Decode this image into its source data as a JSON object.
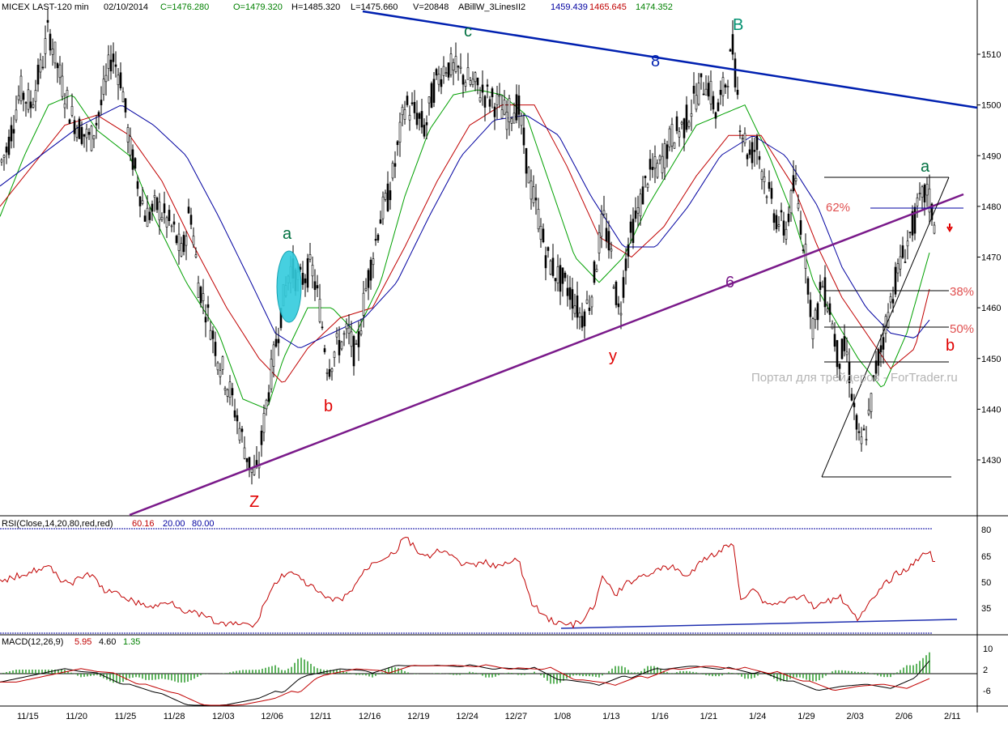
{
  "header": {
    "symbol": "MICEX LAST-120 min",
    "date": "02/10/2014",
    "close": "C=1476.280",
    "open": "O=1479.320",
    "high": "H=1485.320",
    "low": "L=1475.660",
    "volume": "V=20848",
    "indicator_name": "ABillW_3LinesII2",
    "ind_blue": "1459.439",
    "ind_red": "1465.645",
    "ind_green": "1474.352"
  },
  "rsi": {
    "label": "RSI(Close,14,20,80,red,red)",
    "value": "60.16",
    "low": "20.00",
    "high": "80.00",
    "ticks": [
      "80",
      "65",
      "50",
      "35"
    ]
  },
  "macd": {
    "label": "MACD(12,26,9)",
    "macd": "5.95",
    "signal": "4.60",
    "hist": "1.35",
    "ticks": [
      "10",
      "2",
      "-6"
    ]
  },
  "watermark": "Портал для трейдеров - ForTrader.ru",
  "colors": {
    "blue": "#0000a0",
    "red": "#c00000",
    "green": "#00a000",
    "purple": "#7a1a8a",
    "wave_red": "#e00000",
    "wave_green": "#007040",
    "wave_teal": "#009070",
    "cyan": "#33ccdd"
  },
  "chart_data": {
    "type": "candlestick",
    "ylim": [
      1420,
      1518
    ],
    "yticks": [
      1430,
      1440,
      1450,
      1460,
      1470,
      1480,
      1490,
      1500,
      1510
    ],
    "xticks": [
      "11/15",
      "11/20",
      "11/25",
      "11/28",
      "12/03",
      "12/06",
      "12/11",
      "12/16",
      "12/19",
      "12/24",
      "12/27",
      "1/08",
      "1/13",
      "1/16",
      "1/21",
      "1/24",
      "1/29",
      "2/03",
      "2/06",
      "2/11"
    ],
    "price_path": [
      [
        0,
        1488
      ],
      [
        10,
        1492
      ],
      [
        25,
        1503
      ],
      [
        38,
        1500
      ],
      [
        52,
        1508
      ],
      [
        60,
        1515
      ],
      [
        75,
        1505
      ],
      [
        88,
        1498
      ],
      [
        100,
        1495
      ],
      [
        112,
        1493
      ],
      [
        125,
        1500
      ],
      [
        138,
        1510
      ],
      [
        150,
        1505
      ],
      [
        160,
        1492
      ],
      [
        170,
        1485
      ],
      [
        180,
        1478
      ],
      [
        195,
        1480
      ],
      [
        215,
        1475
      ],
      [
        225,
        1470
      ],
      [
        235,
        1480
      ],
      [
        245,
        1465
      ],
      [
        258,
        1458
      ],
      [
        270,
        1450
      ],
      [
        285,
        1443
      ],
      [
        298,
        1435
      ],
      [
        310,
        1428
      ],
      [
        318,
        1427
      ],
      [
        328,
        1440
      ],
      [
        338,
        1450
      ],
      [
        348,
        1460
      ],
      [
        358,
        1468
      ],
      [
        370,
        1465
      ],
      [
        385,
        1468
      ],
      [
        395,
        1460
      ],
      [
        405,
        1448
      ],
      [
        415,
        1452
      ],
      [
        430,
        1455
      ],
      [
        440,
        1450
      ],
      [
        450,
        1462
      ],
      [
        460,
        1470
      ],
      [
        470,
        1478
      ],
      [
        480,
        1482
      ],
      [
        490,
        1490
      ],
      [
        500,
        1500
      ],
      [
        515,
        1498
      ],
      [
        525,
        1495
      ],
      [
        535,
        1503
      ],
      [
        550,
        1508
      ],
      [
        570,
        1506
      ],
      [
        585,
        1504
      ],
      [
        600,
        1502
      ],
      [
        615,
        1500
      ],
      [
        625,
        1498
      ],
      [
        640,
        1500
      ],
      [
        655,
        1484
      ],
      [
        665,
        1478
      ],
      [
        675,
        1470
      ],
      [
        690,
        1466
      ],
      [
        705,
        1463
      ],
      [
        718,
        1458
      ],
      [
        730,
        1462
      ],
      [
        745,
        1478
      ],
      [
        755,
        1470
      ],
      [
        765,
        1458
      ],
      [
        775,
        1472
      ],
      [
        790,
        1480
      ],
      [
        800,
        1486
      ],
      [
        815,
        1488
      ],
      [
        830,
        1494
      ],
      [
        845,
        1496
      ],
      [
        860,
        1502
      ],
      [
        873,
        1505
      ],
      [
        885,
        1498
      ],
      [
        897,
        1505
      ],
      [
        905,
        1511
      ],
      [
        915,
        1496
      ],
      [
        925,
        1490
      ],
      [
        935,
        1492
      ],
      [
        945,
        1485
      ],
      [
        958,
        1478
      ],
      [
        970,
        1475
      ],
      [
        982,
        1485
      ],
      [
        995,
        1470
      ],
      [
        1005,
        1455
      ],
      [
        1015,
        1465
      ],
      [
        1025,
        1460
      ],
      [
        1035,
        1450
      ],
      [
        1045,
        1452
      ],
      [
        1055,
        1440
      ],
      [
        1062,
        1432
      ],
      [
        1072,
        1437
      ],
      [
        1082,
        1448
      ],
      [
        1092,
        1455
      ],
      [
        1105,
        1465
      ],
      [
        1115,
        1470
      ],
      [
        1125,
        1475
      ],
      [
        1135,
        1480
      ],
      [
        1145,
        1483
      ],
      [
        1155,
        1476
      ]
    ],
    "indicator_lines": [
      {
        "name": "green",
        "values": [
          [
            0,
            1478
          ],
          [
            30,
            1490
          ],
          [
            60,
            1500
          ],
          [
            90,
            1502
          ],
          [
            120,
            1495
          ],
          [
            160,
            1490
          ],
          [
            190,
            1478
          ],
          [
            230,
            1465
          ],
          [
            270,
            1455
          ],
          [
            300,
            1442
          ],
          [
            330,
            1440
          ],
          [
            350,
            1450
          ],
          [
            380,
            1460
          ],
          [
            410,
            1460
          ],
          [
            440,
            1455
          ],
          [
            470,
            1465
          ],
          [
            500,
            1482
          ],
          [
            530,
            1495
          ],
          [
            560,
            1502
          ],
          [
            590,
            1503
          ],
          [
            620,
            1502
          ],
          [
            650,
            1498
          ],
          [
            680,
            1484
          ],
          [
            710,
            1470
          ],
          [
            740,
            1465
          ],
          [
            770,
            1470
          ],
          [
            800,
            1480
          ],
          [
            830,
            1488
          ],
          [
            860,
            1496
          ],
          [
            890,
            1498
          ],
          [
            920,
            1500
          ],
          [
            950,
            1490
          ],
          [
            980,
            1478
          ],
          [
            1005,
            1465
          ],
          [
            1030,
            1458
          ],
          [
            1060,
            1450
          ],
          [
            1090,
            1444
          ],
          [
            1120,
            1455
          ],
          [
            1150,
            1472
          ]
        ]
      },
      {
        "name": "red",
        "values": [
          [
            0,
            1480
          ],
          [
            40,
            1488
          ],
          [
            80,
            1496
          ],
          [
            120,
            1498
          ],
          [
            160,
            1494
          ],
          [
            200,
            1485
          ],
          [
            240,
            1472
          ],
          [
            280,
            1460
          ],
          [
            320,
            1450
          ],
          [
            350,
            1445
          ],
          [
            380,
            1452
          ],
          [
            420,
            1458
          ],
          [
            460,
            1460
          ],
          [
            500,
            1472
          ],
          [
            540,
            1485
          ],
          [
            580,
            1496
          ],
          [
            620,
            1500
          ],
          [
            660,
            1500
          ],
          [
            700,
            1488
          ],
          [
            740,
            1474
          ],
          [
            780,
            1470
          ],
          [
            820,
            1476
          ],
          [
            860,
            1486
          ],
          [
            900,
            1494
          ],
          [
            940,
            1494
          ],
          [
            980,
            1484
          ],
          [
            1010,
            1472
          ],
          [
            1040,
            1462
          ],
          [
            1070,
            1455
          ],
          [
            1100,
            1448
          ],
          [
            1130,
            1452
          ],
          [
            1150,
            1465
          ]
        ]
      },
      {
        "name": "blue",
        "values": [
          [
            0,
            1484
          ],
          [
            50,
            1490
          ],
          [
            100,
            1496
          ],
          [
            150,
            1500
          ],
          [
            190,
            1496
          ],
          [
            230,
            1490
          ],
          [
            270,
            1478
          ],
          [
            310,
            1465
          ],
          [
            340,
            1455
          ],
          [
            370,
            1452
          ],
          [
            410,
            1455
          ],
          [
            450,
            1458
          ],
          [
            490,
            1465
          ],
          [
            530,
            1478
          ],
          [
            570,
            1490
          ],
          [
            610,
            1497
          ],
          [
            650,
            1498
          ],
          [
            690,
            1494
          ],
          [
            730,
            1482
          ],
          [
            770,
            1472
          ],
          [
            810,
            1472
          ],
          [
            850,
            1480
          ],
          [
            890,
            1490
          ],
          [
            930,
            1494
          ],
          [
            970,
            1490
          ],
          [
            1010,
            1480
          ],
          [
            1040,
            1468
          ],
          [
            1070,
            1460
          ],
          [
            1100,
            1455
          ],
          [
            1130,
            1454
          ],
          [
            1150,
            1458
          ]
        ]
      }
    ],
    "rsi_path": [
      [
        0,
        718
      ],
      [
        20,
        712
      ],
      [
        40,
        705
      ],
      [
        60,
        700
      ],
      [
        75,
        715
      ],
      [
        90,
        720
      ],
      [
        110,
        708
      ],
      [
        130,
        730
      ],
      [
        150,
        735
      ],
      [
        170,
        745
      ],
      [
        190,
        750
      ],
      [
        210,
        742
      ],
      [
        230,
        755
      ],
      [
        250,
        760
      ],
      [
        265,
        768
      ],
      [
        280,
        772
      ],
      [
        300,
        770
      ],
      [
        315,
        774
      ],
      [
        325,
        748
      ],
      [
        340,
        720
      ],
      [
        355,
        705
      ],
      [
        370,
        715
      ],
      [
        385,
        725
      ],
      [
        400,
        738
      ],
      [
        415,
        742
      ],
      [
        430,
        735
      ],
      [
        445,
        712
      ],
      [
        460,
        695
      ],
      [
        475,
        688
      ],
      [
        490,
        680
      ],
      [
        500,
        662
      ],
      [
        515,
        680
      ],
      [
        530,
        690
      ],
      [
        545,
        678
      ],
      [
        560,
        690
      ],
      [
        580,
        700
      ],
      [
        600,
        695
      ],
      [
        620,
        700
      ],
      [
        640,
        690
      ],
      [
        655,
        742
      ],
      [
        670,
        760
      ],
      [
        690,
        770
      ],
      [
        705,
        772
      ],
      [
        720,
        768
      ],
      [
        735,
        745
      ],
      [
        745,
        712
      ],
      [
        760,
        735
      ],
      [
        775,
        720
      ],
      [
        790,
        712
      ],
      [
        810,
        705
      ],
      [
        830,
        700
      ],
      [
        850,
        712
      ],
      [
        870,
        690
      ],
      [
        890,
        680
      ],
      [
        905,
        670
      ],
      [
        915,
        740
      ],
      [
        930,
        725
      ],
      [
        945,
        745
      ],
      [
        960,
        745
      ],
      [
        975,
        740
      ],
      [
        990,
        735
      ],
      [
        1005,
        750
      ],
      [
        1020,
        745
      ],
      [
        1035,
        735
      ],
      [
        1050,
        750
      ],
      [
        1060,
        765
      ],
      [
        1075,
        745
      ],
      [
        1090,
        725
      ],
      [
        1105,
        710
      ],
      [
        1125,
        700
      ],
      [
        1145,
        678
      ],
      [
        1155,
        695
      ]
    ]
  }
}
